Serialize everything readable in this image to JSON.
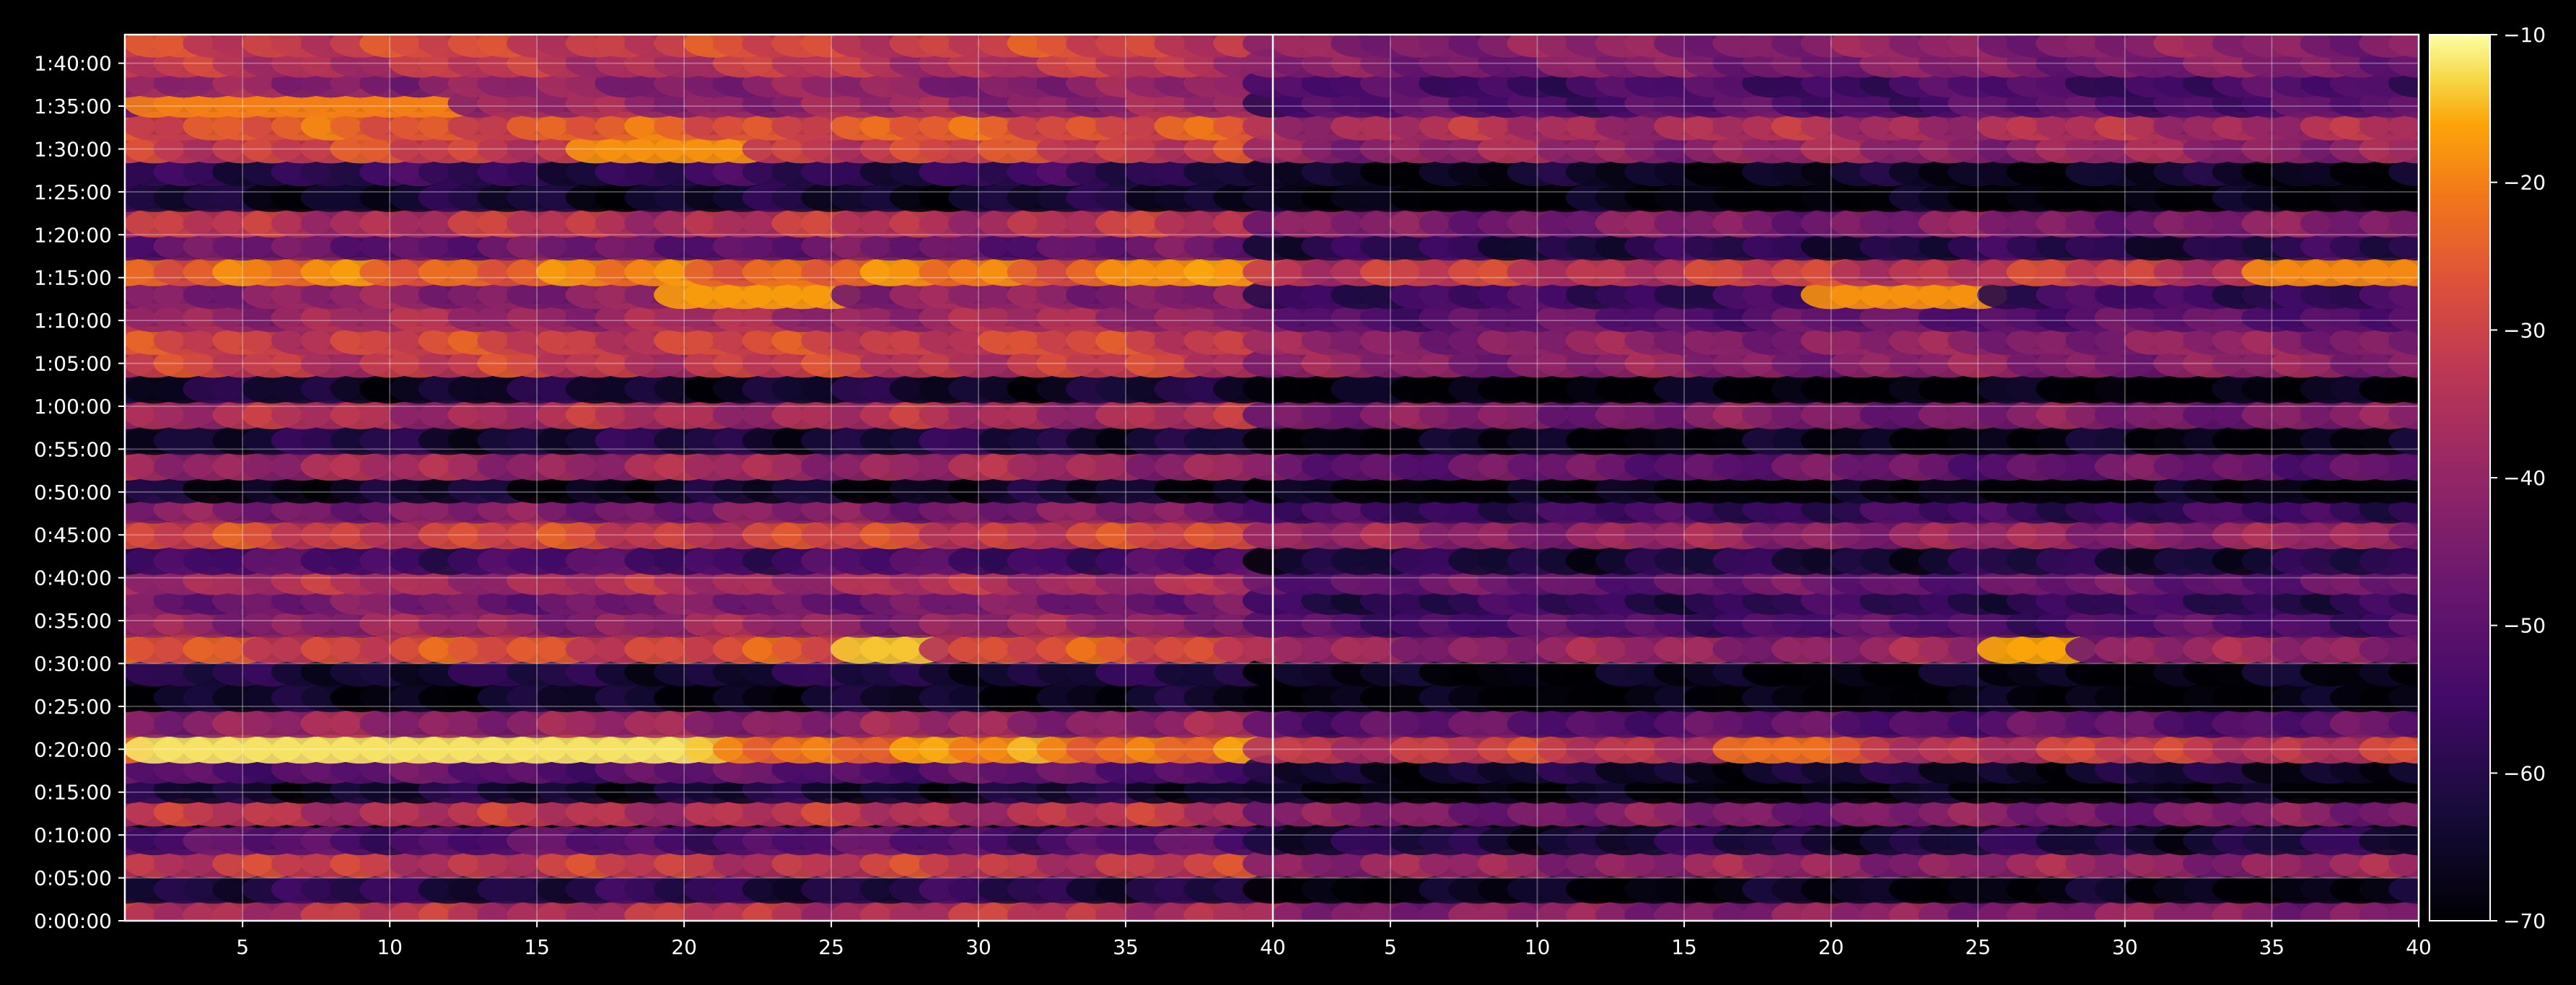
{
  "chart_data": {
    "type": "heatmap",
    "title": "",
    "xlabel": "",
    "ylabel": "",
    "colormap": "inferno",
    "background_color": "#000000",
    "grid": true,
    "colorbar": {
      "placement": "right",
      "range": [
        -70,
        -10
      ],
      "ticks": [
        "−70",
        "−60",
        "−50",
        "−40",
        "−30",
        "−20",
        "−10"
      ],
      "tick_values": [
        -70,
        -60,
        -50,
        -40,
        -30,
        -20,
        -10
      ]
    },
    "panels": [
      {
        "name": "left",
        "xlim": [
          1,
          40
        ],
        "xticks": [
          5,
          10,
          15,
          20,
          25,
          30,
          35,
          40
        ],
        "xtick_labels": [
          "5",
          "10",
          "15",
          "20",
          "25",
          "30",
          "35",
          "40"
        ]
      },
      {
        "name": "right",
        "xlim": [
          1,
          40
        ],
        "xticks": [
          5,
          10,
          15,
          20,
          25,
          30,
          35,
          40
        ],
        "xtick_labels": [
          "5",
          "10",
          "15",
          "20",
          "25",
          "30",
          "35",
          "40"
        ]
      }
    ],
    "ylim_seconds": [
      0,
      6200
    ],
    "yticks_seconds": [
      0,
      300,
      600,
      900,
      1200,
      1500,
      1800,
      2100,
      2400,
      2700,
      3000,
      3300,
      3600,
      3900,
      4200,
      4500,
      4800,
      5100,
      5400,
      5700,
      6000
    ],
    "ytick_labels": [
      "0:00:00",
      "0:05:00",
      "0:10:00",
      "0:15:00",
      "0:20:00",
      "0:25:00",
      "0:30:00",
      "0:35:00",
      "0:40:00",
      "0:45:00",
      "0:50:00",
      "0:55:00",
      "1:00:00",
      "1:05:00",
      "1:10:00",
      "1:15:00",
      "1:20:00",
      "1:25:00",
      "1:30:00",
      "1:35:00",
      "1:40:00"
    ],
    "time_rows_seconds": [
      40,
      220,
      400,
      560,
      760,
      920,
      1060,
      1200,
      1380,
      1560,
      1740,
      1900,
      2080,
      2240,
      2380,
      2520,
      2700,
      2880,
      3020,
      3180,
      3360,
      3540,
      3720,
      3900,
      4060,
      4220,
      4380,
      4540,
      4720,
      4880,
      5060,
      5240,
      5400,
      5560,
      5720,
      5860,
      6000,
      6140
    ],
    "left_panel_row_levels": [
      -34,
      -60,
      -32,
      -52,
      -34,
      -64,
      -50,
      -20,
      -40,
      -66,
      -62,
      -28,
      -40,
      -46,
      -36,
      -54,
      -30,
      -44,
      -66,
      -38,
      -62,
      -36,
      -64,
      -32,
      -30,
      -38,
      -42,
      -22,
      -48,
      -34,
      -64,
      -58,
      -30,
      -26,
      -40,
      -42,
      -34,
      -30
    ],
    "right_panel_row_levels": [
      -42,
      -68,
      -40,
      -62,
      -44,
      -70,
      -64,
      -32,
      -50,
      -70,
      -68,
      -40,
      -52,
      -58,
      -48,
      -62,
      -40,
      -56,
      -70,
      -48,
      -68,
      -44,
      -70,
      -42,
      -42,
      -50,
      -56,
      -32,
      -60,
      -44,
      -70,
      -66,
      -40,
      -36,
      -52,
      -54,
      -44,
      -42
    ],
    "hotspots": [
      {
        "panel": "left",
        "x": [
          2,
          20
        ],
        "time_s": 1200,
        "level": -12
      },
      {
        "panel": "left",
        "x": [
          26,
          28
        ],
        "time_s": 1900,
        "level": -14
      },
      {
        "panel": "left",
        "x": [
          20,
          25
        ],
        "time_s": 4380,
        "level": -17
      },
      {
        "panel": "left",
        "x": [
          35,
          40
        ],
        "time_s": 4540,
        "level": -18
      },
      {
        "panel": "left",
        "x": [
          17,
          22
        ],
        "time_s": 5400,
        "level": -18
      },
      {
        "panel": "left",
        "x": [
          2,
          12
        ],
        "time_s": 5720,
        "level": -20
      },
      {
        "panel": "right",
        "x": [
          26,
          28
        ],
        "time_s": 1900,
        "level": -16
      },
      {
        "panel": "right",
        "x": [
          20,
          25
        ],
        "time_s": 4380,
        "level": -18
      },
      {
        "panel": "right",
        "x": [
          35,
          40
        ],
        "time_s": 4540,
        "level": -19
      },
      {
        "panel": "right",
        "x": [
          17,
          20
        ],
        "time_s": 1200,
        "level": -22
      }
    ]
  }
}
